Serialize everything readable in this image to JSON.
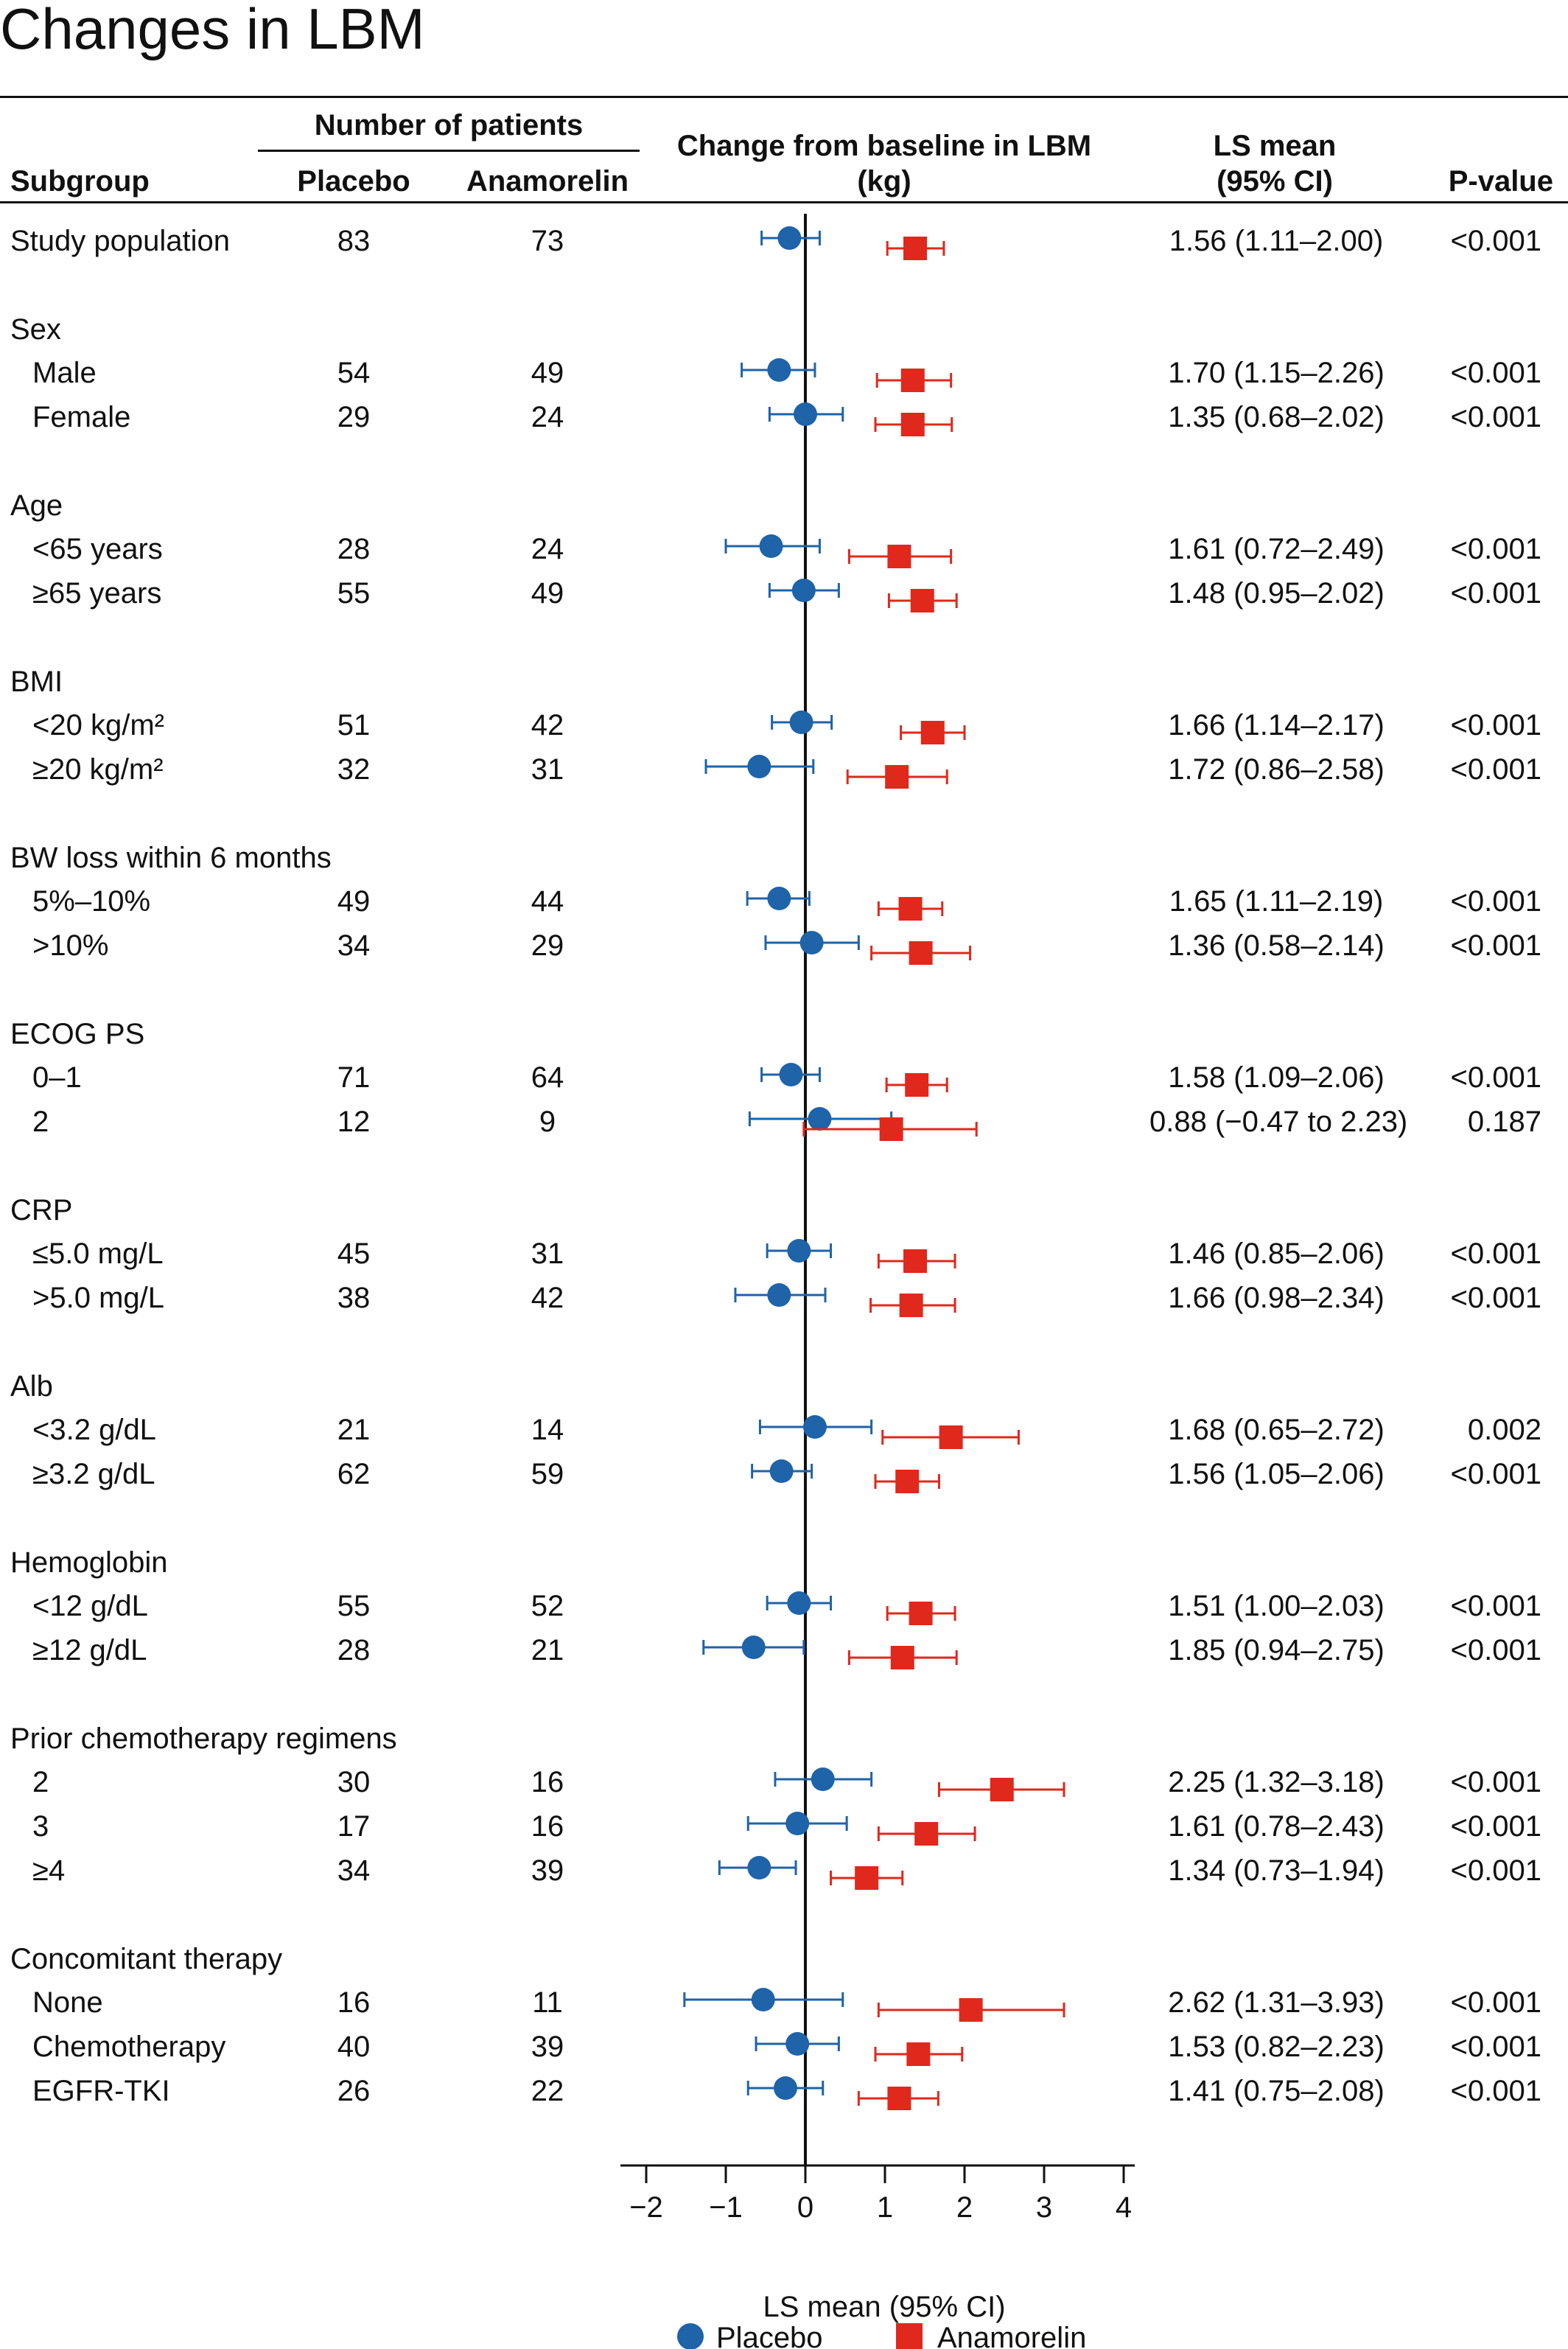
{
  "title": "Changes in LBM",
  "headers": {
    "subgroup": "Subgroup",
    "number_of_patients": "Number of patients",
    "placebo": "Placebo",
    "anamorelin": "Anamorelin",
    "change_line1": "Change from baseline in LBM",
    "change_line2": "(kg)",
    "ls_line1": "LS mean",
    "ls_line2": "(95% CI)",
    "pvalue": "P-value"
  },
  "colors": {
    "placebo": "#1f63a8",
    "anamorelin": "#e0281c",
    "axis": "#111111"
  },
  "chart_data": {
    "type": "forest",
    "xlabel": "LS mean (95% CI)",
    "xlim": [
      -2,
      4
    ],
    "ticks": [
      -2,
      -1,
      0,
      1,
      2,
      3,
      4
    ],
    "tick_labels": [
      "−2",
      "−1",
      "0",
      "1",
      "2",
      "3",
      "4"
    ],
    "reference_line": 0,
    "legend": [
      {
        "name": "Placebo",
        "marker": "circle",
        "color": "#1f63a8"
      },
      {
        "name": "Anamorelin",
        "marker": "square",
        "color": "#e0281c"
      }
    ],
    "legend_position": "bottom",
    "rows": [
      {
        "label": "Study population",
        "indent": false,
        "n_placebo": "83",
        "n_anamorelin": "73",
        "ls": "1.56 (1.11–2.00)",
        "p": "<0.001",
        "placebo": {
          "est": -0.2,
          "lo": -0.55,
          "hi": 0.18
        },
        "anamorelin": {
          "est": 1.38,
          "lo": 1.03,
          "hi": 1.74
        }
      },
      {
        "label": "Sex",
        "header": true
      },
      {
        "label": "Male",
        "indent": true,
        "n_placebo": "54",
        "n_anamorelin": "49",
        "ls": "1.70 (1.15–2.26)",
        "p": "<0.001",
        "placebo": {
          "est": -0.33,
          "lo": -0.8,
          "hi": 0.12
        },
        "anamorelin": {
          "est": 1.35,
          "lo": 0.9,
          "hi": 1.83
        }
      },
      {
        "label": "Female",
        "indent": true,
        "n_placebo": "29",
        "n_anamorelin": "24",
        "ls": "1.35 (0.68–2.02)",
        "p": "<0.001",
        "placebo": {
          "est": 0.0,
          "lo": -0.45,
          "hi": 0.47
        },
        "anamorelin": {
          "est": 1.35,
          "lo": 0.88,
          "hi": 1.84
        }
      },
      {
        "label": "Age",
        "header": true
      },
      {
        "label": "<65 years",
        "indent": true,
        "n_placebo": "28",
        "n_anamorelin": "24",
        "ls": "1.61 (0.72–2.49)",
        "p": "<0.001",
        "placebo": {
          "est": -0.43,
          "lo": -1.0,
          "hi": 0.18
        },
        "anamorelin": {
          "est": 1.18,
          "lo": 0.55,
          "hi": 1.83
        }
      },
      {
        "label": "≥65 years",
        "indent": true,
        "n_placebo": "55",
        "n_anamorelin": "49",
        "ls": "1.48 (0.95–2.02)",
        "p": "<0.001",
        "placebo": {
          "est": -0.02,
          "lo": -0.45,
          "hi": 0.42
        },
        "anamorelin": {
          "est": 1.47,
          "lo": 1.05,
          "hi": 1.9
        }
      },
      {
        "label": "BMI",
        "header": true
      },
      {
        "label": "<20 kg/m²",
        "indent": true,
        "n_placebo": "51",
        "n_anamorelin": "42",
        "ls": "1.66 (1.14–2.17)",
        "p": "<0.001",
        "placebo": {
          "est": -0.05,
          "lo": -0.42,
          "hi": 0.33
        },
        "anamorelin": {
          "est": 1.6,
          "lo": 1.2,
          "hi": 2.0
        }
      },
      {
        "label": "≥20 kg/m²",
        "indent": true,
        "n_placebo": "32",
        "n_anamorelin": "31",
        "ls": "1.72 (0.86–2.58)",
        "p": "<0.001",
        "placebo": {
          "est": -0.58,
          "lo": -1.25,
          "hi": 0.1
        },
        "anamorelin": {
          "est": 1.15,
          "lo": 0.53,
          "hi": 1.78
        }
      },
      {
        "label": "BW loss within 6 months",
        "header": true
      },
      {
        "label": "5%–10%",
        "indent": true,
        "n_placebo": "49",
        "n_anamorelin": "44",
        "ls": "1.65 (1.11–2.19)",
        "p": "<0.001",
        "placebo": {
          "est": -0.33,
          "lo": -0.73,
          "hi": 0.05
        },
        "anamorelin": {
          "est": 1.32,
          "lo": 0.92,
          "hi": 1.72
        }
      },
      {
        "label": ">10%",
        "indent": true,
        "n_placebo": "34",
        "n_anamorelin": "29",
        "ls": "1.36 (0.58–2.14)",
        "p": "<0.001",
        "placebo": {
          "est": 0.08,
          "lo": -0.5,
          "hi": 0.67
        },
        "anamorelin": {
          "est": 1.45,
          "lo": 0.83,
          "hi": 2.07
        }
      },
      {
        "label": "ECOG PS",
        "header": true
      },
      {
        "label": "0–1",
        "indent": true,
        "n_placebo": "71",
        "n_anamorelin": "64",
        "ls": "1.58 (1.09–2.06)",
        "p": "<0.001",
        "placebo": {
          "est": -0.18,
          "lo": -0.55,
          "hi": 0.18
        },
        "anamorelin": {
          "est": 1.4,
          "lo": 1.02,
          "hi": 1.78
        }
      },
      {
        "label": "2",
        "indent": true,
        "n_placebo": "12",
        "n_anamorelin": "9",
        "ls": "0.88 (−0.47 to 2.23)",
        "p": "0.187",
        "placebo": {
          "est": 0.18,
          "lo": -0.7,
          "hi": 1.08
        },
        "anamorelin": {
          "est": 1.08,
          "lo": -0.02,
          "hi": 2.15
        }
      },
      {
        "label": "CRP",
        "header": true
      },
      {
        "label": "≤5.0 mg/L",
        "indent": true,
        "n_placebo": "45",
        "n_anamorelin": "31",
        "ls": "1.46 (0.85–2.06)",
        "p": "<0.001",
        "placebo": {
          "est": -0.08,
          "lo": -0.48,
          "hi": 0.32
        },
        "anamorelin": {
          "est": 1.38,
          "lo": 0.92,
          "hi": 1.88
        }
      },
      {
        "label": ">5.0 mg/L",
        "indent": true,
        "n_placebo": "38",
        "n_anamorelin": "42",
        "ls": "1.66 (0.98–2.34)",
        "p": "<0.001",
        "placebo": {
          "est": -0.33,
          "lo": -0.88,
          "hi": 0.25
        },
        "anamorelin": {
          "est": 1.33,
          "lo": 0.82,
          "hi": 1.88
        }
      },
      {
        "label": "Alb",
        "header": true
      },
      {
        "label": "<3.2 g/dL",
        "indent": true,
        "n_placebo": "21",
        "n_anamorelin": "14",
        "ls": "1.68 (0.65–2.72)",
        "p": "0.002",
        "placebo": {
          "est": 0.12,
          "lo": -0.57,
          "hi": 0.83
        },
        "anamorelin": {
          "est": 1.83,
          "lo": 0.97,
          "hi": 2.68
        }
      },
      {
        "label": "≥3.2 g/dL",
        "indent": true,
        "n_placebo": "62",
        "n_anamorelin": "59",
        "ls": "1.56 (1.05–2.06)",
        "p": "<0.001",
        "placebo": {
          "est": -0.3,
          "lo": -0.67,
          "hi": 0.08
        },
        "anamorelin": {
          "est": 1.28,
          "lo": 0.88,
          "hi": 1.68
        }
      },
      {
        "label": "Hemoglobin",
        "header": true
      },
      {
        "label": "<12 g/dL",
        "indent": true,
        "n_placebo": "55",
        "n_anamorelin": "52",
        "ls": "1.51 (1.00–2.03)",
        "p": "<0.001",
        "placebo": {
          "est": -0.08,
          "lo": -0.48,
          "hi": 0.32
        },
        "anamorelin": {
          "est": 1.45,
          "lo": 1.03,
          "hi": 1.88
        }
      },
      {
        "label": "≥12 g/dL",
        "indent": true,
        "n_placebo": "28",
        "n_anamorelin": "21",
        "ls": "1.85 (0.94–2.75)",
        "p": "<0.001",
        "placebo": {
          "est": -0.65,
          "lo": -1.28,
          "hi": -0.02
        },
        "anamorelin": {
          "est": 1.22,
          "lo": 0.55,
          "hi": 1.9
        }
      },
      {
        "label": "Prior chemotherapy regimens",
        "header": true
      },
      {
        "label": "2",
        "indent": true,
        "n_placebo": "30",
        "n_anamorelin": "16",
        "ls": "2.25 (1.32–3.18)",
        "p": "<0.001",
        "placebo": {
          "est": 0.22,
          "lo": -0.38,
          "hi": 0.83
        },
        "anamorelin": {
          "est": 2.47,
          "lo": 1.68,
          "hi": 3.25
        }
      },
      {
        "label": "3",
        "indent": true,
        "n_placebo": "17",
        "n_anamorelin": "16",
        "ls": "1.61 (0.78–2.43)",
        "p": "<0.001",
        "placebo": {
          "est": -0.1,
          "lo": -0.72,
          "hi": 0.52
        },
        "anamorelin": {
          "est": 1.52,
          "lo": 0.92,
          "hi": 2.13
        }
      },
      {
        "label": "≥4",
        "indent": true,
        "n_placebo": "34",
        "n_anamorelin": "39",
        "ls": "1.34 (0.73–1.94)",
        "p": "<0.001",
        "placebo": {
          "est": -0.58,
          "lo": -1.08,
          "hi": -0.12
        },
        "anamorelin": {
          "est": 0.77,
          "lo": 0.32,
          "hi": 1.22
        }
      },
      {
        "label": "Concomitant therapy",
        "header": true
      },
      {
        "label": "None",
        "indent": true,
        "n_placebo": "16",
        "n_anamorelin": "11",
        "ls": "2.62 (1.31–3.93)",
        "p": "<0.001",
        "placebo": {
          "est": -0.53,
          "lo": -1.52,
          "hi": 0.47
        },
        "anamorelin": {
          "est": 2.08,
          "lo": 0.92,
          "hi": 3.25
        }
      },
      {
        "label": "Chemotherapy",
        "indent": true,
        "n_placebo": "40",
        "n_anamorelin": "39",
        "ls": "1.53 (0.82–2.23)",
        "p": "<0.001",
        "placebo": {
          "est": -0.1,
          "lo": -0.62,
          "hi": 0.42
        },
        "anamorelin": {
          "est": 1.42,
          "lo": 0.88,
          "hi": 1.97
        }
      },
      {
        "label": "EGFR-TKI",
        "indent": true,
        "n_placebo": "26",
        "n_anamorelin": "22",
        "ls": "1.41 (0.75–2.08)",
        "p": "<0.001",
        "placebo": {
          "est": -0.25,
          "lo": -0.72,
          "hi": 0.22
        },
        "anamorelin": {
          "est": 1.18,
          "lo": 0.67,
          "hi": 1.67
        }
      }
    ]
  }
}
